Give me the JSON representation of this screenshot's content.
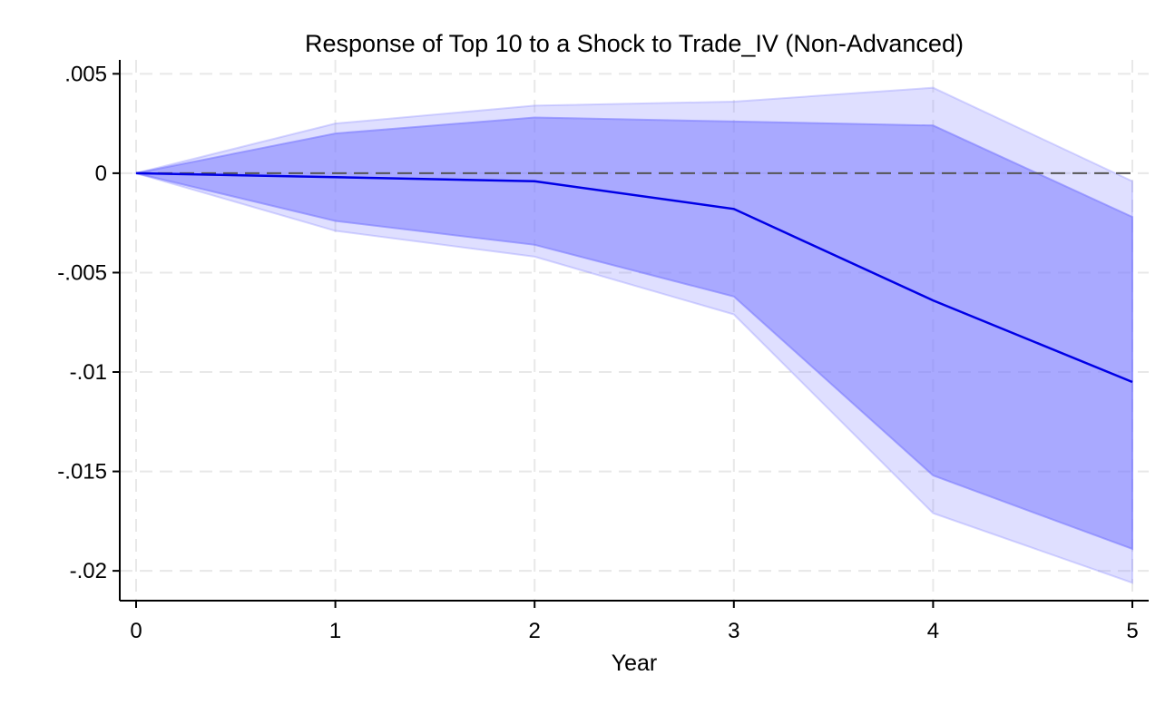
{
  "colors": {
    "outer_band": "#8c8cff",
    "inner_band": "#7b7bff",
    "line": "#0000e6",
    "zero_line": "#555555",
    "grid": "#e8e8e8",
    "axis": "#000000"
  },
  "chart_data": {
    "type": "line",
    "title": "Response of Top 10 to a Shock to Trade_IV (Non-Advanced)",
    "xlabel": "Year",
    "ylabel": "",
    "x": [
      0,
      1,
      2,
      3,
      4,
      5
    ],
    "xlim": [
      0,
      5
    ],
    "ylim": [
      -0.0215,
      0.0057
    ],
    "x_ticks": [
      0,
      1,
      2,
      3,
      4,
      5
    ],
    "x_tick_labels": [
      "0",
      "1",
      "2",
      "3",
      "4",
      "5"
    ],
    "y_ticks": [
      0.005,
      0,
      -0.005,
      -0.01,
      -0.015,
      -0.02
    ],
    "y_tick_labels": [
      ".005",
      "0",
      "-.005",
      "-.01",
      "-.015",
      "-.02"
    ],
    "grid": true,
    "reference_line": 0,
    "series": [
      {
        "role": "outer_upper",
        "values": [
          0,
          0.0025,
          0.0034,
          0.0036,
          0.0043,
          -0.0004
        ]
      },
      {
        "role": "outer_lower",
        "values": [
          0,
          -0.0029,
          -0.0042,
          -0.0071,
          -0.0171,
          -0.0206
        ]
      },
      {
        "role": "inner_upper",
        "values": [
          0,
          0.002,
          0.0028,
          0.0026,
          0.0024,
          -0.0022
        ]
      },
      {
        "role": "inner_lower",
        "values": [
          0,
          -0.0024,
          -0.0036,
          -0.0062,
          -0.0152,
          -0.0189
        ]
      },
      {
        "role": "point_estimate",
        "values": [
          0,
          -0.0002,
          -0.0004,
          -0.0018,
          -0.0064,
          -0.0105
        ]
      }
    ]
  }
}
